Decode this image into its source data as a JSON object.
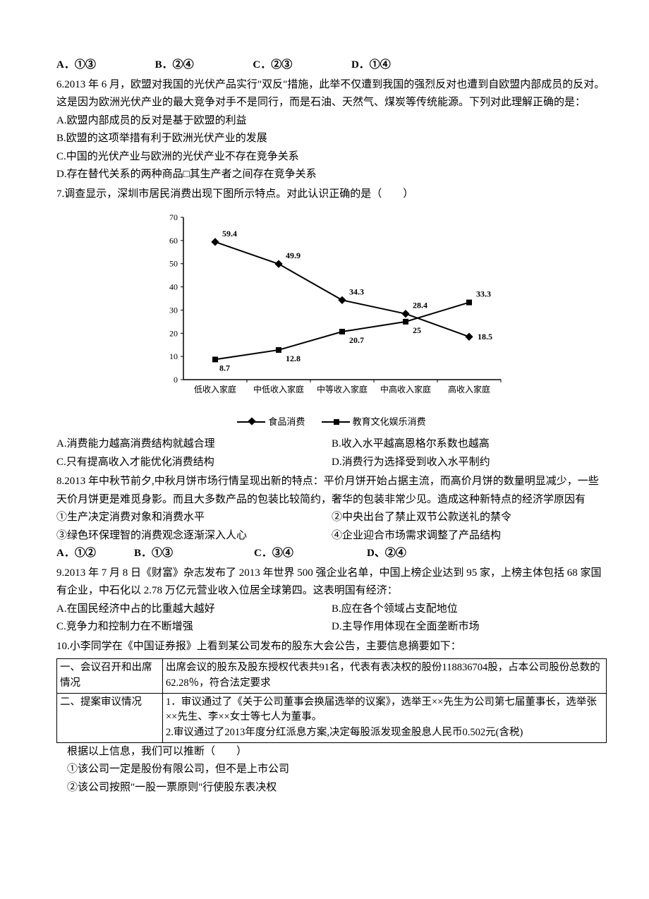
{
  "q5_options": {
    "a": "A．①③",
    "b": "B．②④",
    "c": "C．②③",
    "d": "D．①④"
  },
  "q6": {
    "stem": "6.2013 年 6 月，欧盟对我国的光伏产品实行\"双反\"措施，此举不仅遭到我国的强烈反对也遭到自欧盟内部成员的反对。这是因为欧洲光伏产业的最大竞争对手不是同行，而是石油、天然气、煤炭等传统能源。下列对此理解正确的是：",
    "a": "A.欧盟内部成员的反对是基于欧盟的利益",
    "b": "B.欧盟的这项举措有利于欧洲光伏产业的发展",
    "c": "C.中国的光伏产业与欧洲的光伏产业不存在竞争关系",
    "d": "D.存在替代关系的两种商品□其生产者之间存在竞争关系"
  },
  "q7": {
    "stem": "7.调查显示，深圳市居民消费出现下图所示特点。对此认识正确的是（　　）",
    "a": "A.消费能力越高消费结构就越合理",
    "b": "B.收入水平越高恩格尔系数也越高",
    "c": "C.只有提高收入才能优化消费结构",
    "d": "D.消费行为选择受到收入水平制约"
  },
  "chart": {
    "type": "line",
    "categories": [
      "低收入家庭",
      "中低收入家庭",
      "中等收入家庭",
      "中高收入家庭",
      "高收入家庭"
    ],
    "series": [
      {
        "name": "食品消费",
        "marker": "diamond",
        "color": "#000000",
        "values": [
          59.4,
          49.9,
          34.3,
          28.4,
          18.5
        ]
      },
      {
        "name": "教育文化娱乐消费",
        "marker": "square",
        "color": "#000000",
        "values": [
          8.7,
          12.8,
          20.7,
          25,
          33.3
        ]
      }
    ],
    "ylim": [
      0,
      70
    ],
    "ytick_step": 10,
    "background_color": "#ffffff",
    "axis_color": "#000000",
    "line_width": 2,
    "marker_size": 8,
    "label_fontsize": 12
  },
  "q8": {
    "stem": "8.2013 年中秋节前夕,中秋月饼市场行情呈现出新的特点：平价月饼开始占据主流，而高价月饼的数量明显减少，一些天价月饼更是难觅身影。而且大多数产品的包装比较简约，奢华的包装非常少见。造成这种新特点的经济学原因有",
    "s1": "①生产决定消费对象和消费水平",
    "s2": "②中央出台了禁止双节公款送礼的禁令",
    "s3": "③绿色环保理智的消费观念逐渐深入人心",
    "s4": "④企业迎合市场需求调整了产品结构",
    "a": "A．①②",
    "b": "B．①③",
    "c": "C．③④",
    "d": "D、②④"
  },
  "q9": {
    "stem": "9.2013 年 7 月 8 日《财富》杂志发布了 2013 年世界 500 强企业名单，中国上榜企业达到 95 家，上榜主体包括 68 家国有企业，中石化以 2.78 万亿元营业收入位居全球第四。这表明国有经济：",
    "a": "A.在国民经济中占的比重越大越好",
    "b": "B.应在各个领域占支配地位",
    "c": "C.竞争力和控制力在不断增强",
    "d": "D.主导作用体现在全面垄断市场"
  },
  "q10": {
    "stem": "10.小李同学在《中国证券报》上看到某公司发布的股东大会公告，主要信息摘要如下：",
    "row1_left": "一、会议召开和出席情况",
    "row1_right": "出席会议的股东及股东授权代表共91名，代表有表决权的股份118836704股，占本公司股份总数的62.28％，符合法定要求",
    "row2_left": "二、提案审议情况",
    "row2_right": "1．审议通过了《关于公司董事会换届选举的议案》，选举王××先生为公司第七届董事长，选举张××先生、李××女士等七人为董事。\n2.审议通过了2013年度分红派息方案,决定每股派发现金股息人民币0.502元(含税)",
    "followup": "根据以上信息，我们可以推断（　　）",
    "s1": "①该公司一定是股份有限公司，但不是上市公司",
    "s2": "②该公司按照\"一股一票原则\"行使股东表决权"
  }
}
